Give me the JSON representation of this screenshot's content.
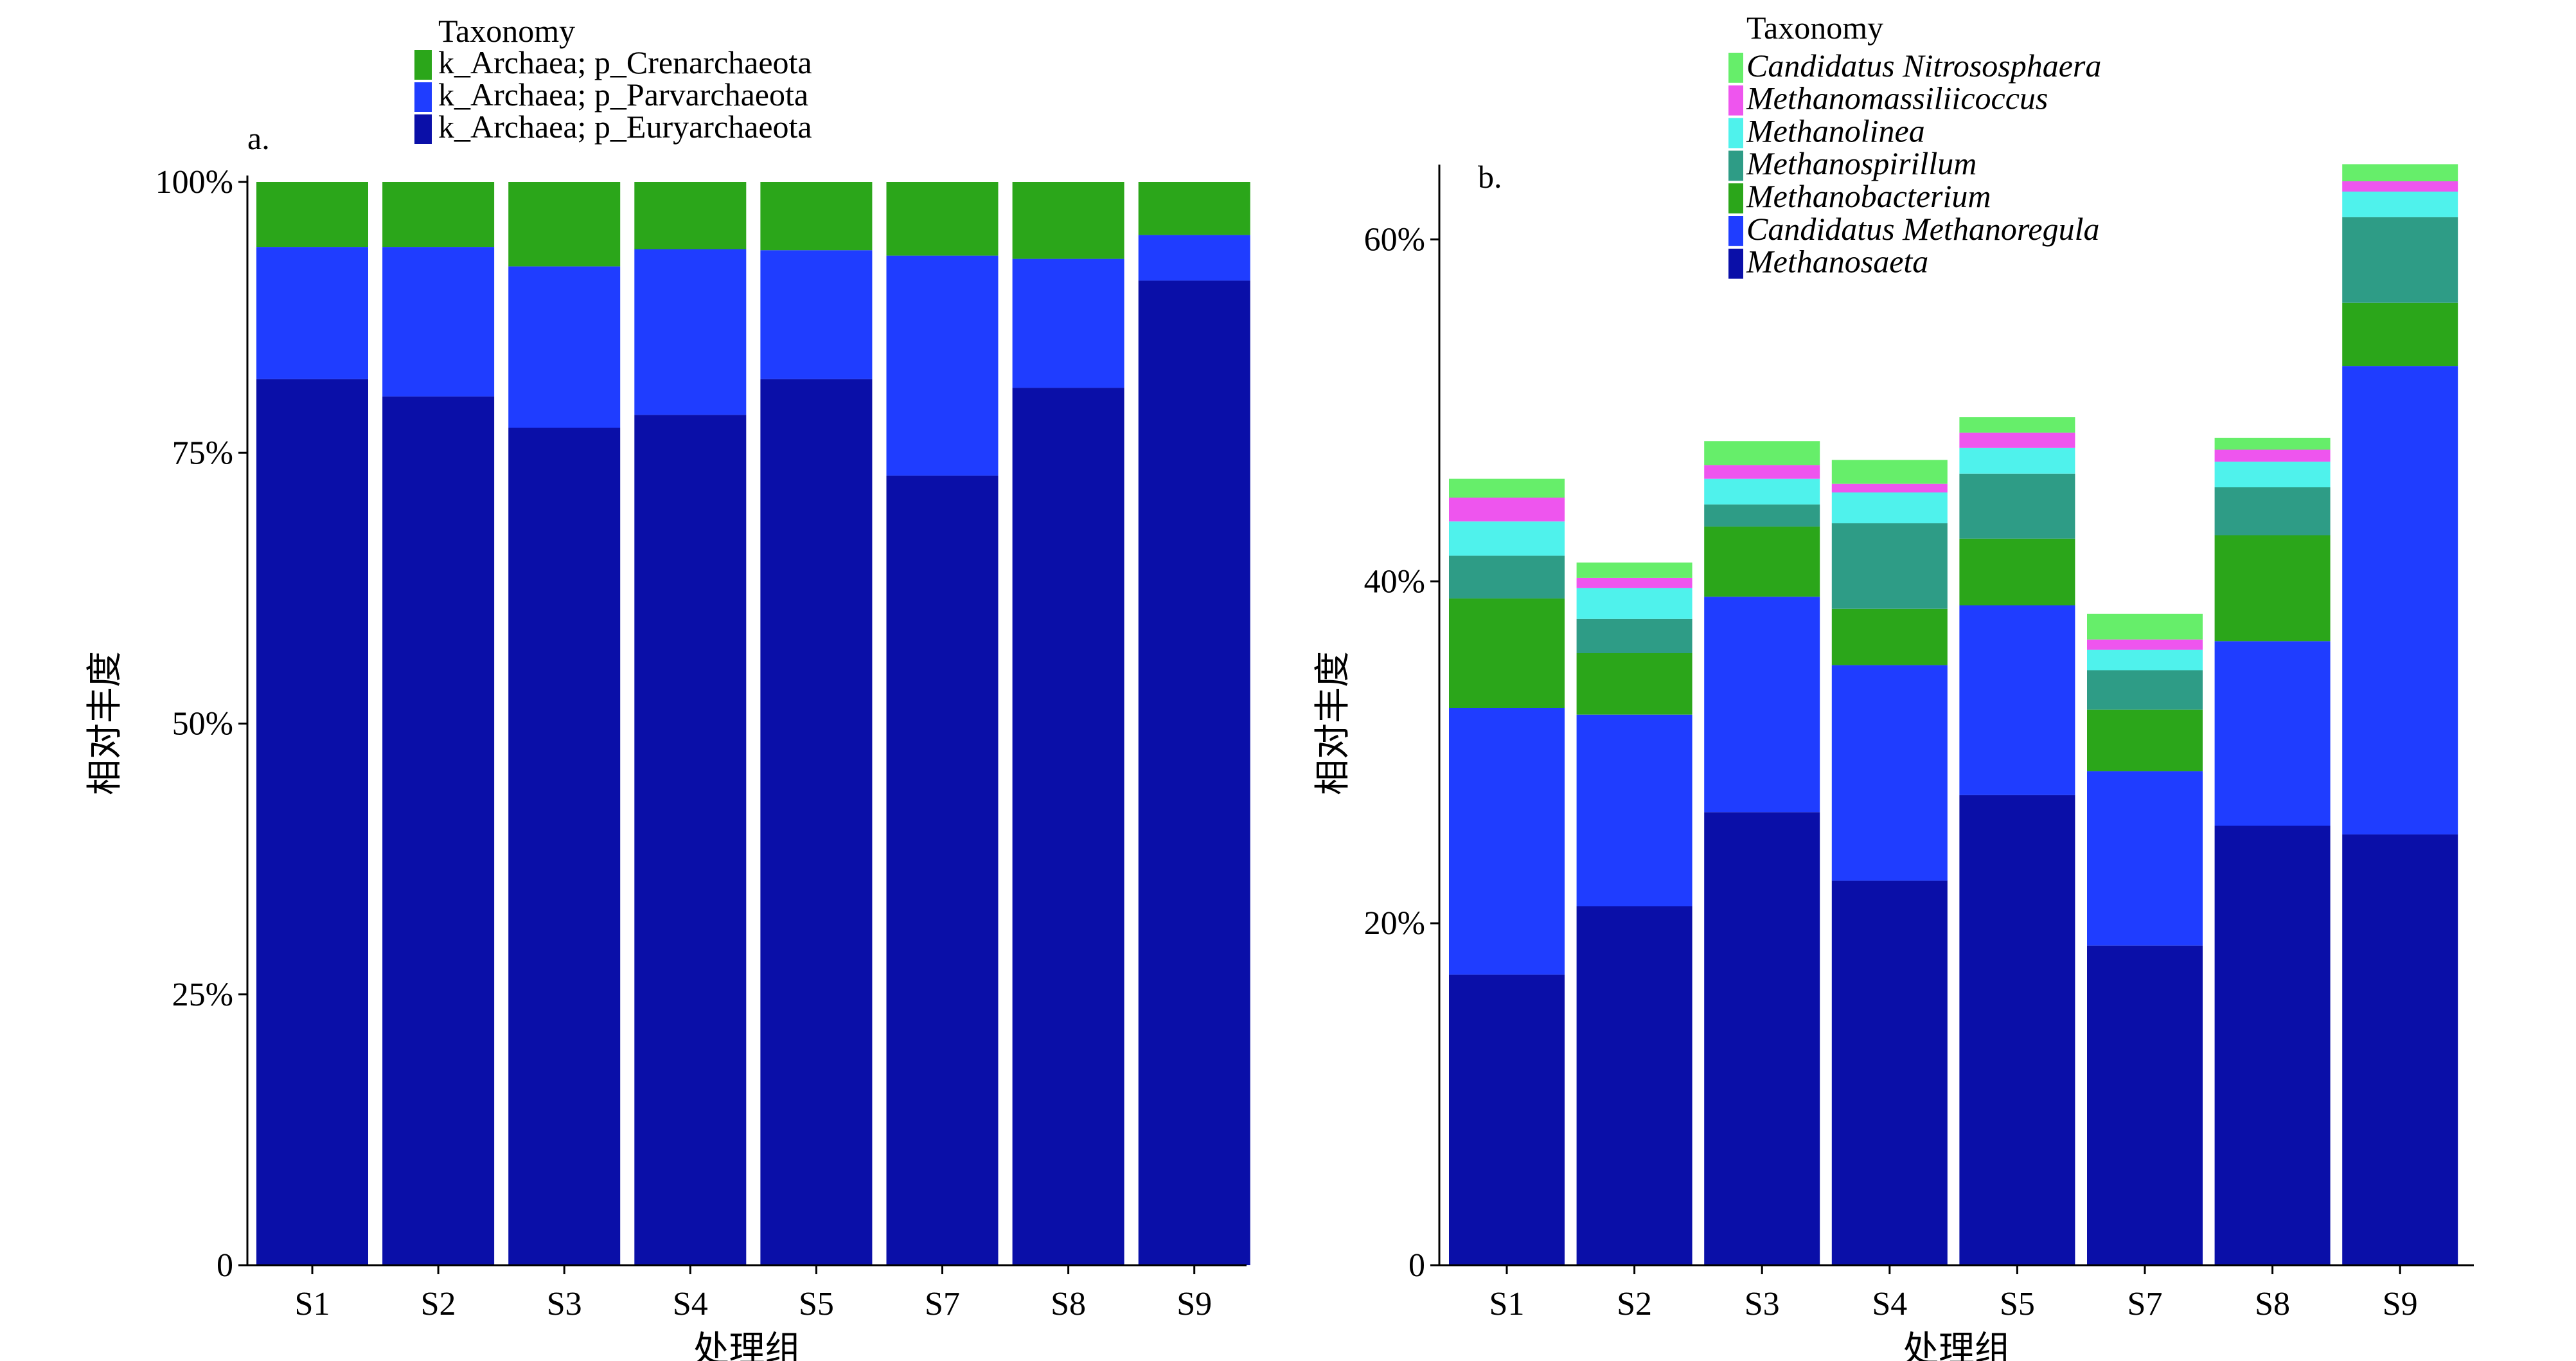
{
  "figure": {
    "panels": [
      "a.",
      "b."
    ]
  },
  "chart_data": [
    {
      "type": "bar",
      "stacked": true,
      "panel_label": "a.",
      "categories": [
        "S1",
        "S2",
        "S3",
        "S4",
        "S5",
        "S7",
        "S8",
        "S9"
      ],
      "xlabel": "处理组",
      "ylabel": "相对丰度",
      "ylim": [
        0,
        100
      ],
      "yticks": [
        0,
        25,
        50,
        75,
        100
      ],
      "ytick_labels": [
        "0",
        "25%",
        "50%",
        "75%",
        "100%"
      ],
      "legend_title": "Taxonomy",
      "legend_position": "top",
      "grid": false,
      "series": [
        {
          "name": "k_Archaea; p_Euryarchaeota",
          "color": "#0a0fa8",
          "values": [
            81.8,
            80.2,
            77.3,
            78.5,
            81.8,
            72.9,
            81.0,
            90.9
          ]
        },
        {
          "name": "k_Archaea; p_Parvarchaeota",
          "color": "#1f3dff",
          "values": [
            12.2,
            13.8,
            14.9,
            15.3,
            11.9,
            20.3,
            11.9,
            4.2
          ]
        },
        {
          "name": "k_Archaea; p_Crenarchaeota",
          "color": "#2ba61a",
          "values": [
            6.0,
            6.0,
            7.8,
            6.2,
            6.3,
            6.8,
            7.1,
            4.9
          ]
        }
      ]
    },
    {
      "type": "bar",
      "stacked": true,
      "panel_label": "b.",
      "categories": [
        "S1",
        "S2",
        "S3",
        "S4",
        "S5",
        "S7",
        "S8",
        "S9"
      ],
      "xlabel": "处理组",
      "ylabel": "相对丰度",
      "ylim": [
        0,
        64
      ],
      "yticks": [
        0,
        20,
        40,
        60
      ],
      "ytick_labels": [
        "0",
        "20%",
        "40%",
        "60%"
      ],
      "legend_title": "Taxonomy",
      "legend_position": "top",
      "legend_italic": true,
      "grid": false,
      "series": [
        {
          "name": "Methanosaeta",
          "color": "#0a0fa8",
          "values": [
            17.0,
            21.0,
            26.5,
            22.5,
            27.5,
            18.7,
            25.7,
            25.2
          ]
        },
        {
          "name": "Candidatus Methanoregula",
          "color": "#1f3dff",
          "values": [
            15.6,
            11.2,
            12.6,
            12.6,
            11.1,
            10.2,
            10.8,
            27.4
          ]
        },
        {
          "name": "Methanobacterium",
          "color": "#2ba61a",
          "values": [
            6.4,
            3.6,
            4.1,
            3.3,
            3.9,
            3.6,
            6.2,
            3.7
          ]
        },
        {
          "name": "Methanospirillum",
          "color": "#2e9c86",
          "values": [
            2.5,
            2.0,
            1.3,
            5.0,
            3.8,
            2.3,
            2.8,
            5.0
          ]
        },
        {
          "name": "Methanolinea",
          "color": "#4ff2ec",
          "values": [
            2.0,
            1.8,
            1.5,
            1.8,
            1.5,
            1.2,
            1.5,
            1.5
          ]
        },
        {
          "name": "Methanomassiliicoccus",
          "color": "#ee55ee",
          "values": [
            1.4,
            0.6,
            0.8,
            0.5,
            0.9,
            0.6,
            0.7,
            0.6
          ]
        },
        {
          "name": "Candidatus Nitrososphaera",
          "color": "#66ee6a",
          "values": [
            1.1,
            0.9,
            1.4,
            1.4,
            0.9,
            1.5,
            0.7,
            1.0
          ]
        }
      ]
    }
  ]
}
